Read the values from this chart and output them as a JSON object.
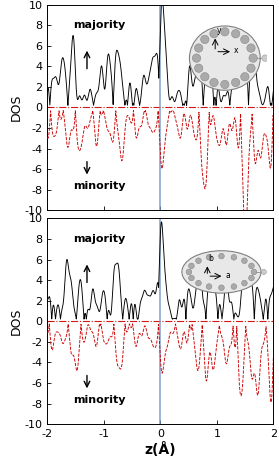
{
  "xlim": [
    -2,
    2
  ],
  "ylim": [
    -10,
    10
  ],
  "xlabel": "z(Å)",
  "ylabel": "DOS",
  "majority_color": "#000000",
  "minority_color": "#cc0000",
  "vline_color": "#7799cc",
  "hline_color": "#cc0000",
  "yticks": [
    -10,
    -8,
    -6,
    -4,
    -2,
    0,
    2,
    4,
    6,
    8,
    10
  ],
  "xticks": [
    -2,
    -1,
    0,
    1,
    2
  ],
  "axis_fontsize": 9,
  "tick_fontsize": 8,
  "label_fontsize": 8
}
